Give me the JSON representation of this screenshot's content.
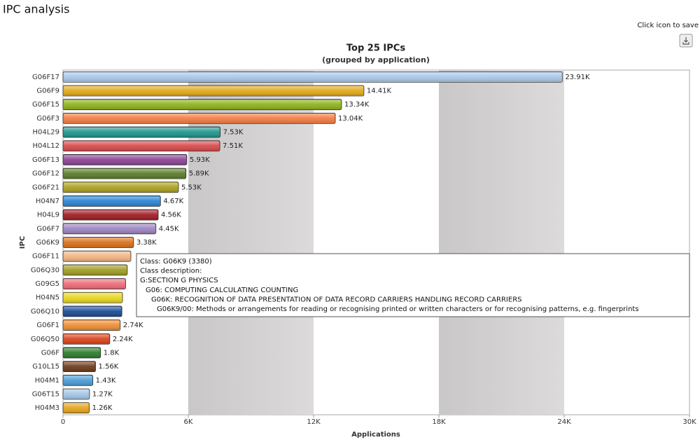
{
  "page": {
    "title": "IPC analysis",
    "save_hint": "Click icon to save"
  },
  "chart_data": {
    "type": "bar",
    "orientation": "horizontal",
    "title": "Top 25 IPCs",
    "subtitle": "(grouped by application)",
    "xlabel": "Applications",
    "ylabel": "IPC",
    "categories": [
      "G06F17",
      "G06F9",
      "G06F15",
      "G06F3",
      "H04L29",
      "H04L12",
      "G06F13",
      "G06F12",
      "G06F21",
      "H04N7",
      "H04L9",
      "G06F7",
      "G06K9",
      "G06F11",
      "G06Q30",
      "G09G5",
      "H04N5",
      "G06Q10",
      "G06F1",
      "G06Q50",
      "G06F",
      "G10L15",
      "H04M1",
      "G06T15",
      "H04M3"
    ],
    "values": [
      23910,
      14410,
      13340,
      13040,
      7530,
      7510,
      5930,
      5890,
      5530,
      4670,
      4560,
      4450,
      3380,
      3250,
      3080,
      3000,
      2850,
      2820,
      2740,
      2240,
      1800,
      1560,
      1430,
      1270,
      1260
    ],
    "value_labels": [
      "23.91K",
      "14.41K",
      "13.34K",
      "13.04K",
      "7.53K",
      "7.51K",
      "5.93K",
      "5.89K",
      "5.53K",
      "4.67K",
      "4.56K",
      "4.45K",
      "3.38K",
      null,
      null,
      null,
      null,
      null,
      "2.74K",
      "2.24K",
      "1.8K",
      "1.56K",
      "1.43K",
      "1.27K",
      "1.26K"
    ],
    "colors": [
      "#a9c6e8",
      "#e2a91e",
      "#8db21d",
      "#f07d45",
      "#1f958d",
      "#d94a4a",
      "#8d4595",
      "#5d7d2d",
      "#a9a121",
      "#2d85d5",
      "#a11d25",
      "#9d85c1",
      "#d9711d",
      "#f1b585",
      "#a19d25",
      "#ed6d79",
      "#e9d521",
      "#1d4d95",
      "#ed8d35",
      "#d9451d",
      "#2d7d2d",
      "#6d3d1d",
      "#4d9dd5",
      "#a5c5e5",
      "#e5a51d"
    ],
    "xlim": [
      0,
      30000
    ],
    "xticks": [
      0,
      {
        "value": 6000,
        "label": "6K"
      },
      {
        "value": 12000,
        "label": "12K"
      },
      {
        "value": 18000,
        "label": "18K"
      },
      {
        "value": 24000,
        "label": "24K"
      },
      {
        "value": 30000,
        "label": "30K"
      }
    ],
    "alternate_bands": true
  },
  "tooltip": {
    "lines": [
      "Class: G06K9 (3380)",
      "Class description:",
      "G:SECTION G PHYSICS",
      "G06: COMPUTING CALCULATING COUNTING",
      "G06K: RECOGNITION OF DATA PRESENTATION OF DATA RECORD CARRIERS HANDLING RECORD CARRIERS",
      "G06K9/00: Methods or arrangements for reading or recognising printed or written characters or for recognising patterns, e.g. fingerprints"
    ]
  }
}
